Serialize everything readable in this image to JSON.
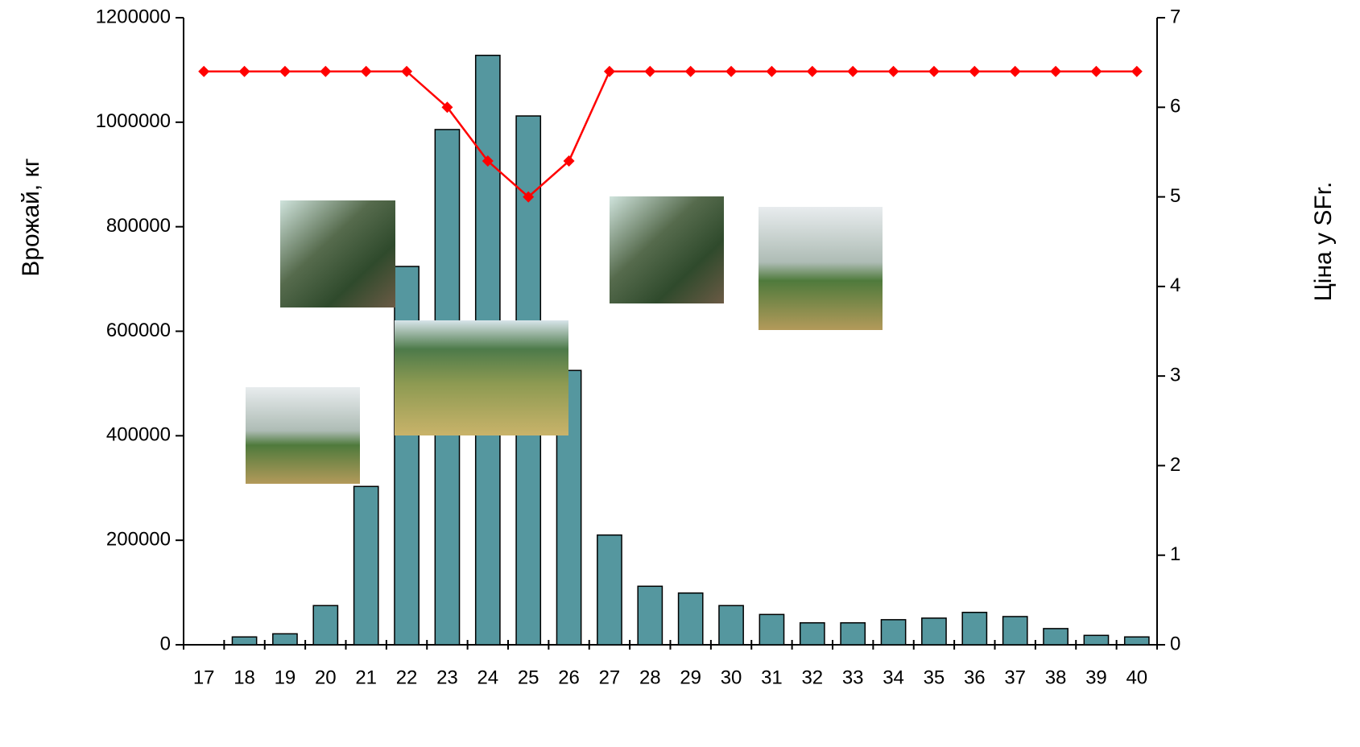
{
  "chart_data": {
    "type": "bar",
    "categories": [
      "17",
      "18",
      "19",
      "20",
      "21",
      "22",
      "23",
      "24",
      "25",
      "26",
      "27",
      "28",
      "29",
      "30",
      "31",
      "32",
      "33",
      "34",
      "35",
      "36",
      "37",
      "38",
      "39",
      "40"
    ],
    "series": [
      {
        "type": "bar",
        "color": "#55979f",
        "values": [
          0,
          15000,
          21000,
          75000,
          303000,
          724000,
          986000,
          1128000,
          1012000,
          525000,
          210000,
          112000,
          99000,
          75000,
          58000,
          42000,
          42000,
          48000,
          51000,
          62000,
          54000,
          31000,
          18000,
          15000
        ]
      },
      {
        "type": "line",
        "axis": "y2",
        "color": "#ff0000",
        "values": [
          6.4,
          6.4,
          6.4,
          6.4,
          6.4,
          6.4,
          6,
          5.4,
          5,
          5.4,
          6.4,
          6.4,
          6.4,
          6.4,
          6.4,
          6.4,
          6.4,
          6.4,
          6.4,
          6.4,
          6.4,
          6.4,
          6.4,
          6.4
        ]
      }
    ],
    "ylabel": "Врожай, кг",
    "y2label": "Ціна у SFr.",
    "ylim": [
      0,
      1200000
    ],
    "yticks": [
      0,
      200000,
      400000,
      600000,
      800000,
      1000000,
      1200000
    ],
    "y2lim": [
      0,
      7
    ],
    "y2ticks": [
      0,
      1,
      2,
      3,
      4,
      5,
      6,
      7
    ]
  }
}
